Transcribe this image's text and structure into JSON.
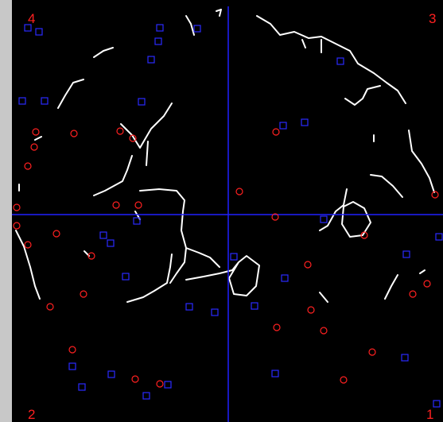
{
  "corner_labels": {
    "top_left": "4",
    "top_right": "3",
    "bottom_left": "2",
    "bottom_right": "1"
  }
}
